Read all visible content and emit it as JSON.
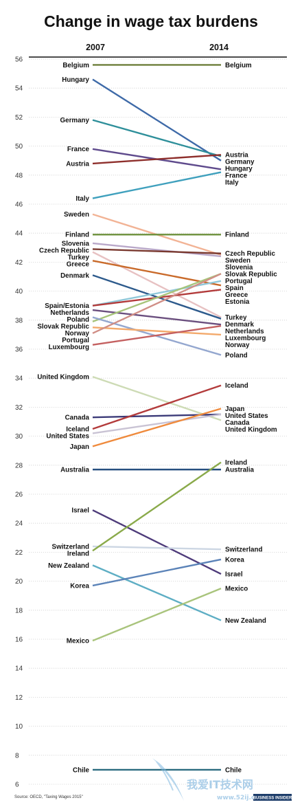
{
  "chart_data": {
    "type": "line",
    "title": "Change in wage tax burdens",
    "x": [
      "2007",
      "2014"
    ],
    "y_ticks": [
      56,
      54,
      52,
      50,
      48,
      46,
      44,
      42,
      40,
      38,
      36,
      34,
      32,
      30,
      28,
      26,
      24,
      22,
      20,
      18,
      16,
      14,
      12,
      10,
      8,
      6
    ],
    "ylim": [
      6,
      56
    ],
    "grid": true,
    "series": [
      {
        "name": "Belgium",
        "values": [
          55.6,
          55.6
        ],
        "color": "#6d7f3a"
      },
      {
        "name": "Hungary",
        "values": [
          54.6,
          49.0
        ],
        "color": "#3e6aa8"
      },
      {
        "name": "Germany",
        "values": [
          51.8,
          49.3
        ],
        "color": "#2e8f9a"
      },
      {
        "name": "France",
        "values": [
          49.8,
          48.4
        ],
        "color": "#5e4a8c"
      },
      {
        "name": "Austria",
        "values": [
          48.8,
          49.4
        ],
        "color": "#8e2f2c"
      },
      {
        "name": "Italy",
        "values": [
          46.4,
          48.2
        ],
        "color": "#3fa0bd"
      },
      {
        "name": "Sweden",
        "values": [
          45.3,
          42.5
        ],
        "color": "#f2b395"
      },
      {
        "name": "Finland",
        "values": [
          43.9,
          43.9
        ],
        "color": "#6b8f3a"
      },
      {
        "name": "Slovenia",
        "values": [
          43.3,
          42.4
        ],
        "color": "#b9a8c9"
      },
      {
        "name": "Czech Republic",
        "values": [
          42.9,
          42.6
        ],
        "color": "#7a3a30"
      },
      {
        "name": "Turkey",
        "values": [
          42.7,
          38.2
        ],
        "color": "#e7c1c2"
      },
      {
        "name": "Greece",
        "values": [
          42.1,
          40.4
        ],
        "color": "#c96a2a"
      },
      {
        "name": "Denmark",
        "values": [
          41.1,
          38.1
        ],
        "color": "#2d5a8c"
      },
      {
        "name": "Spain",
        "values": [
          39.0,
          40.7
        ],
        "color": "#8fc7d8"
      },
      {
        "name": "Estonia",
        "values": [
          39.0,
          40.1
        ],
        "color": "#b23a3a"
      },
      {
        "name": "Netherlands",
        "values": [
          38.7,
          37.7
        ],
        "color": "#6a4e7e"
      },
      {
        "name": "Slovak Republic",
        "values": [
          37.9,
          41.2
        ],
        "color": "#a7c47a"
      },
      {
        "name": "Poland",
        "values": [
          38.2,
          35.6
        ],
        "color": "#94a7cf"
      },
      {
        "name": "Norway",
        "values": [
          37.5,
          37.0
        ],
        "color": "#f3a96b"
      },
      {
        "name": "Portugal",
        "values": [
          37.1,
          41.2
        ],
        "color": "#d08e86"
      },
      {
        "name": "Luxembourg",
        "values": [
          36.3,
          37.6
        ],
        "color": "#c46060"
      },
      {
        "name": "United Kingdom",
        "values": [
          34.1,
          31.1
        ],
        "color": "#cddbb5"
      },
      {
        "name": "Canada",
        "values": [
          31.3,
          31.5
        ],
        "color": "#3b3a78"
      },
      {
        "name": "Iceland",
        "values": [
          30.5,
          33.5
        ],
        "color": "#b33b3b"
      },
      {
        "name": "United States",
        "values": [
          30.2,
          31.5
        ],
        "color": "#c9c3d4"
      },
      {
        "name": "Japan",
        "values": [
          29.3,
          31.9
        ],
        "color": "#ef8a3c"
      },
      {
        "name": "Australia",
        "values": [
          27.7,
          27.7
        ],
        "color": "#264f7f"
      },
      {
        "name": "Israel",
        "values": [
          24.9,
          20.5
        ],
        "color": "#4e3b7a"
      },
      {
        "name": "Switzerland",
        "values": [
          22.4,
          22.2
        ],
        "color": "#ccd6e3"
      },
      {
        "name": "Ireland",
        "values": [
          22.1,
          28.2
        ],
        "color": "#8aaa4a"
      },
      {
        "name": "New Zealand",
        "values": [
          21.1,
          17.3
        ],
        "color": "#5eaec4"
      },
      {
        "name": "Korea",
        "values": [
          19.7,
          21.5
        ],
        "color": "#5b83b8"
      },
      {
        "name": "Mexico",
        "values": [
          15.9,
          19.5
        ],
        "color": "#a9c47c"
      },
      {
        "name": "Chile",
        "values": [
          7.0,
          7.0
        ],
        "color": "#2a6b7f"
      }
    ],
    "left_labels": [
      "Belgium",
      "Hungary",
      "Germany",
      "France",
      "Austria",
      "Italy",
      "Sweden",
      "Finland",
      "Slovenia",
      "Czech Republic",
      "Turkey",
      "Greece",
      "Denmark",
      "Spain/Estonia",
      "Netherlands",
      "Slovak Republic",
      "Poland",
      "Norway",
      "Portugal",
      "Luxembourg",
      "United Kingdom",
      "Canada",
      "Iceland",
      "United States",
      "Japan",
      "Australia",
      "Israel",
      "Switzerland",
      "Ireland",
      "New Zealand",
      "Korea",
      "Mexico",
      "Chile"
    ],
    "right_labels": [
      "Belgium",
      "Austria",
      "Germany",
      "Hungary",
      "France",
      "Italy",
      "Finland",
      "Czech Republic",
      "Sweden",
      "Slovenia",
      "Slovak Republic",
      "Portugal",
      "Spain",
      "Greece",
      "Estonia",
      "Turkey",
      "Denmark",
      "Netherlands",
      "Luxembourg",
      "Norway",
      "Poland",
      "Iceland",
      "Japan",
      "United States",
      "Canada",
      "United Kingdom",
      "Ireland",
      "Australia",
      "Switzerland",
      "Korea",
      "Israel",
      "Mexico",
      "New Zealand",
      "Chile"
    ]
  },
  "source": "Source: OECD, \"Taxing Wages 2015\"",
  "brand": "BUSINESS INSIDER",
  "watermark": {
    "text": "我爱IT技术网",
    "url": "www.52ij.com"
  }
}
